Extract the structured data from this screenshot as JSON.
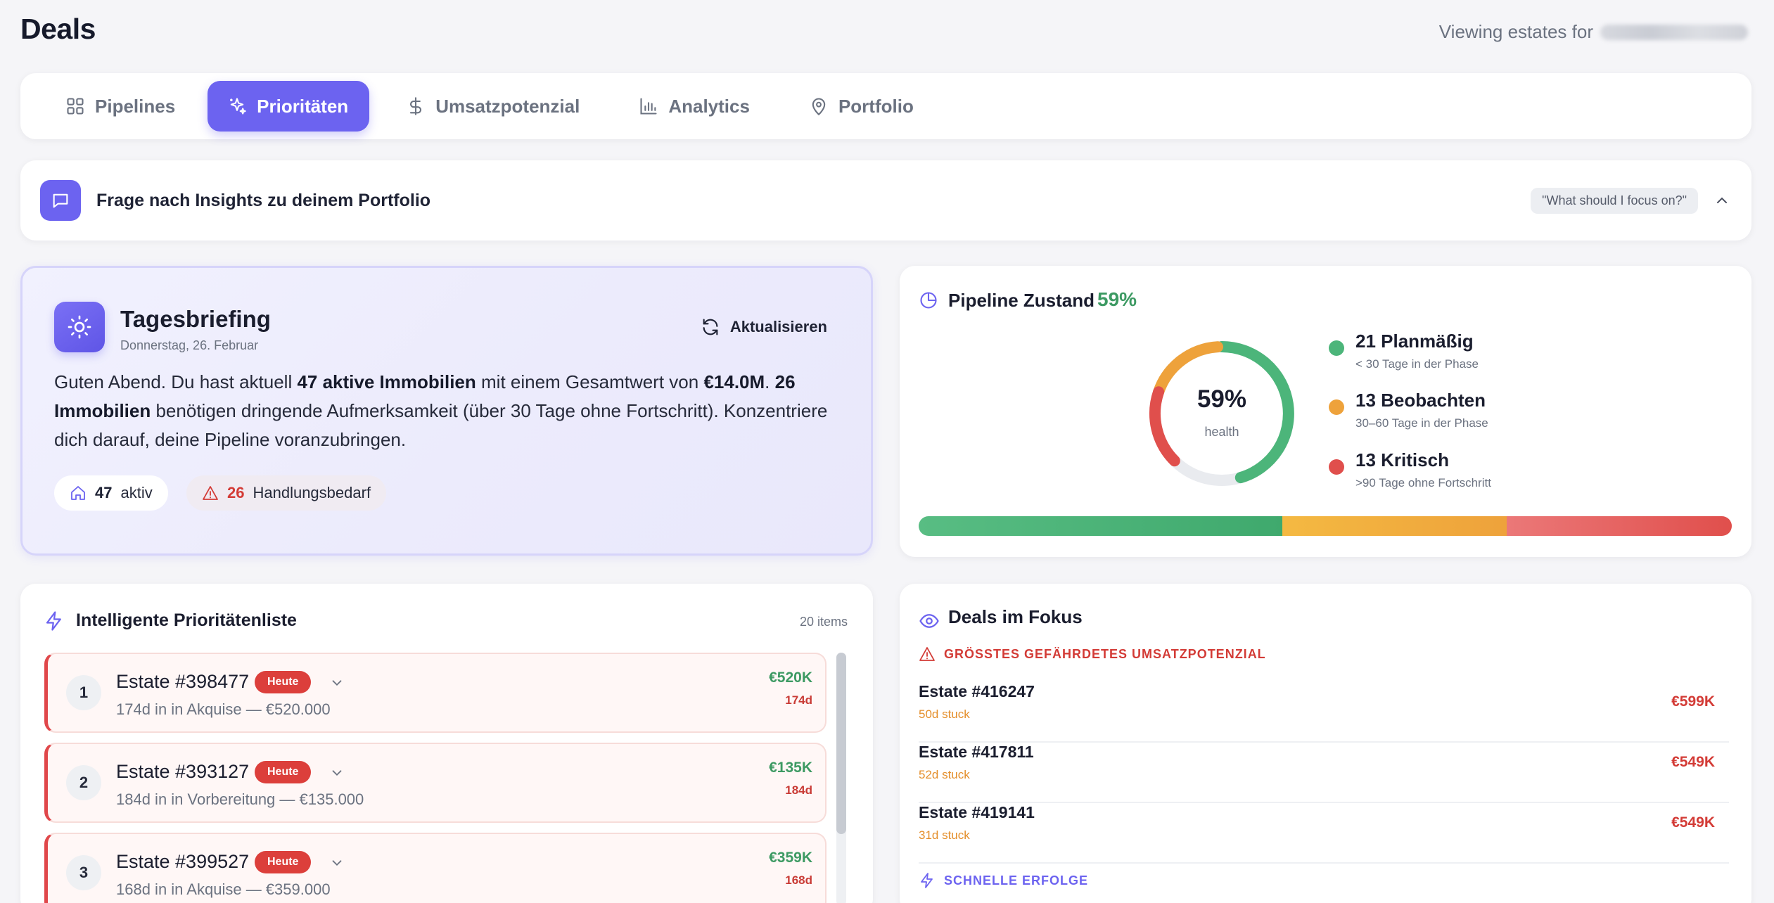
{
  "header": {
    "title": "Deals",
    "viewing_label": "Viewing estates for"
  },
  "tabs": [
    {
      "label": "Pipelines",
      "icon": "grid-icon"
    },
    {
      "label": "Prioritäten",
      "icon": "sparkles-icon",
      "active": true
    },
    {
      "label": "Umsatzpotenzial",
      "icon": "dollar-icon"
    },
    {
      "label": "Analytics",
      "icon": "bar-chart-icon"
    },
    {
      "label": "Portfolio",
      "icon": "map-pin-icon"
    }
  ],
  "ask": {
    "title": "Frage nach Insights zu deinem Portfolio",
    "suggestion": "\"What should I focus on?\""
  },
  "briefing": {
    "title": "Tagesbriefing",
    "date": "Donnerstag, 26. Februar",
    "refresh_label": "Aktualisieren",
    "body": {
      "t1": "Guten Abend. Du hast aktuell ",
      "b1": "47 aktive Immobilien",
      "t2": " mit einem Gesamtwert von ",
      "b2": "€14.0M",
      "t3": ". ",
      "b3": "26 Immobilien",
      "t4": " benötigen dringende Aufmerksamkeit (über 30 Tage ohne Fortschritt). Konzentriere dich darauf, deine Pipeline voranzubringen."
    },
    "active_count": "47",
    "active_label": "aktiv",
    "need_count": "26",
    "need_label": "Handlungsbedarf"
  },
  "pipeline": {
    "title": "Pipeline Zustand",
    "percent": "59%",
    "donut_value": "59%",
    "donut_label": "health",
    "legend": [
      {
        "title": "21 Planmäßig",
        "sub": "< 30 Tage in der Phase",
        "color": "#4cb57a",
        "count": 21
      },
      {
        "title": "13 Beobachten",
        "sub": "30–60 Tage in der Phase",
        "color": "#eea23b",
        "count": 13
      },
      {
        "title": "13 Kritisch",
        "sub": ">90 Tage ohne Fortschritt",
        "color": "#e04f4c",
        "count": 13
      }
    ]
  },
  "priority": {
    "title": "Intelligente Prioritätenliste",
    "count_label": "20 items",
    "badge": "Heute",
    "items": [
      {
        "rank": "1",
        "name": "Estate #398477",
        "sub": "174d in in Akquise — €520.000",
        "amount": "€520K",
        "days": "174d"
      },
      {
        "rank": "2",
        "name": "Estate #393127",
        "sub": "184d in in Vorbereitung — €135.000",
        "amount": "€135K",
        "days": "184d"
      },
      {
        "rank": "3",
        "name": "Estate #399527",
        "sub": "168d in in Akquise — €359.000",
        "amount": "€359K",
        "days": "168d"
      }
    ]
  },
  "fokus": {
    "title": "Deals im Fokus",
    "risk_heading": "GRÖSSTES GEFÄHRDETES UMSATZPOTENZIAL",
    "deals": [
      {
        "name": "Estate #416247",
        "stuck": "50d stuck",
        "amount": "€599K"
      },
      {
        "name": "Estate #417811",
        "stuck": "52d stuck",
        "amount": "€549K"
      },
      {
        "name": "Estate #419141",
        "stuck": "31d stuck",
        "amount": "€549K"
      }
    ],
    "quick_heading": "SCHNELLE ERFOLGE"
  },
  "colors": {
    "accent": "#6c63f0",
    "green": "#3d9a63",
    "red": "#d33b36",
    "orange": "#e48e2a"
  }
}
